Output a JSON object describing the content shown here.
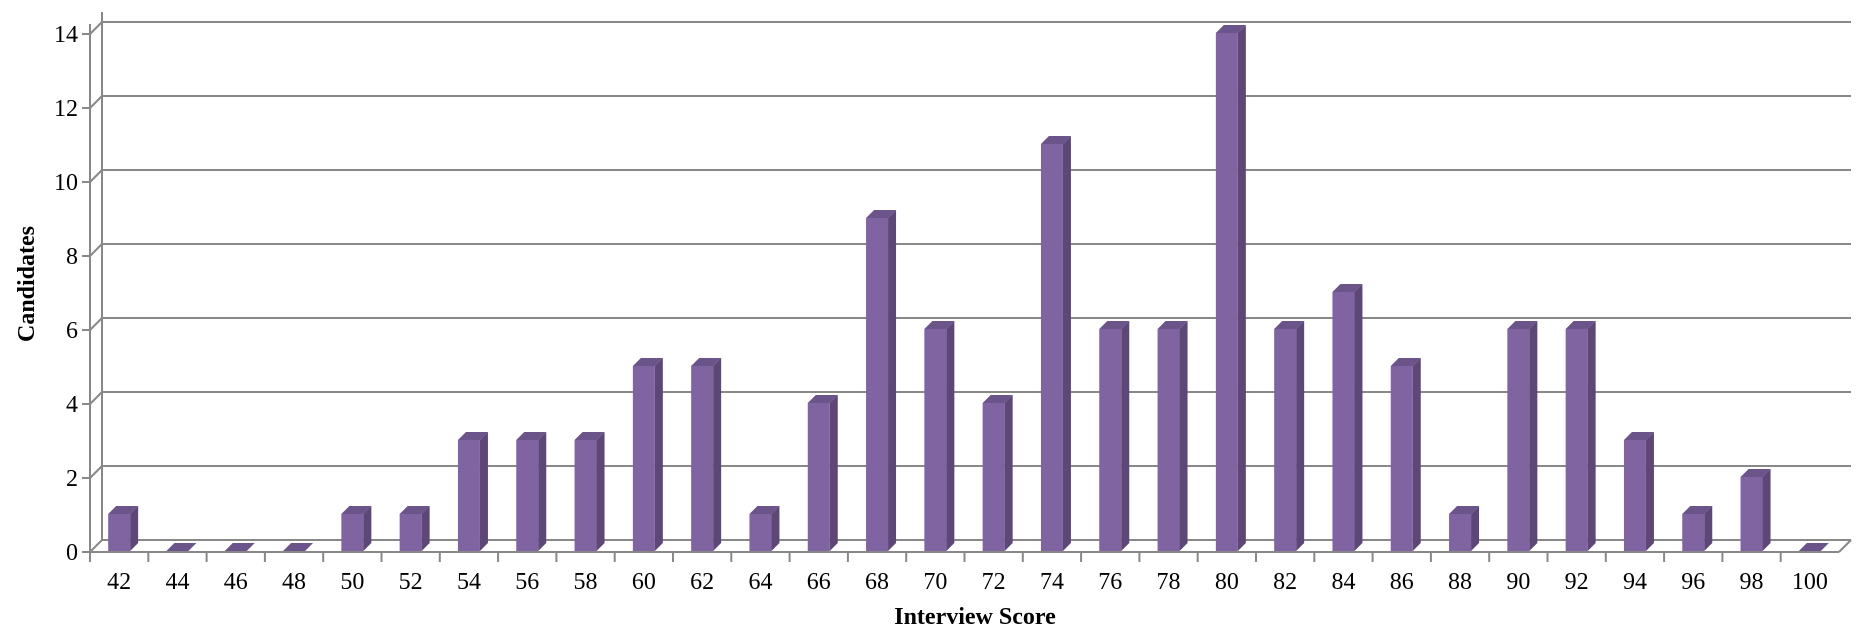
{
  "chart_data": {
    "type": "bar",
    "title": "",
    "xlabel": "Interview Score",
    "ylabel": "Candidates",
    "ylim": [
      0,
      14
    ],
    "yticks": [
      "0",
      "2",
      "4",
      "6",
      "8",
      "10",
      "12",
      "14"
    ],
    "grid": true,
    "legend": "none",
    "categories": [
      "42",
      "44",
      "46",
      "48",
      "50",
      "52",
      "54",
      "56",
      "58",
      "60",
      "62",
      "64",
      "66",
      "68",
      "70",
      "72",
      "74",
      "76",
      "78",
      "80",
      "82",
      "84",
      "86",
      "88",
      "90",
      "92",
      "94",
      "96",
      "98",
      "100"
    ],
    "values": [
      1,
      0,
      0,
      0,
      1,
      1,
      3,
      3,
      3,
      5,
      5,
      1,
      4,
      9,
      6,
      4,
      11,
      6,
      6,
      14,
      6,
      7,
      5,
      1,
      6,
      6,
      3,
      1,
      2,
      0
    ],
    "colors": {
      "bar_front": "#8064a2",
      "bar_side": "#5c4776",
      "bar_top": "#6b5489",
      "gridline": "#888888"
    }
  }
}
